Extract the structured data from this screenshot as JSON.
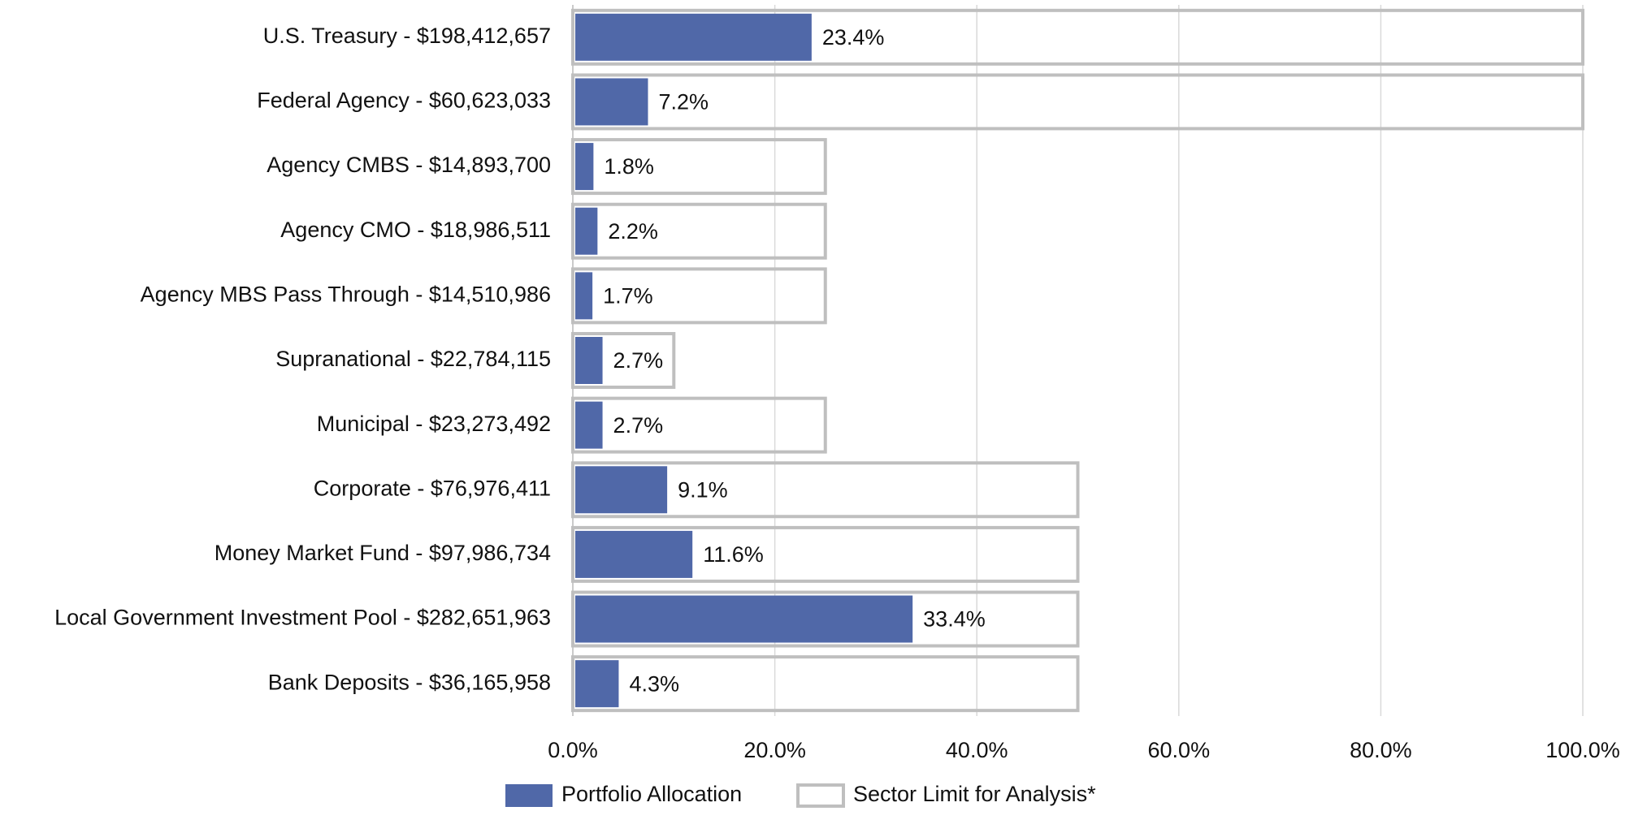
{
  "chart_data": {
    "type": "bar",
    "orientation": "horizontal",
    "categories": [
      "U.S. Treasury - $198,412,657",
      "Federal Agency - $60,623,033",
      "Agency CMBS - $14,893,700",
      "Agency CMO - $18,986,511",
      "Agency MBS Pass Through - $14,510,986",
      "Supranational - $22,784,115",
      "Municipal - $23,273,492",
      "Corporate - $76,976,411",
      "Money Market Fund - $97,986,734",
      "Local Government Investment Pool - $282,651,963",
      "Bank Deposits - $36,165,958"
    ],
    "series": [
      {
        "name": "Portfolio Allocation",
        "color": "#5068a8",
        "values": [
          23.4,
          7.2,
          1.8,
          2.2,
          1.7,
          2.7,
          2.7,
          9.1,
          11.6,
          33.4,
          4.3
        ],
        "value_labels": [
          "23.4%",
          "7.2%",
          "1.8%",
          "2.2%",
          "1.7%",
          "2.7%",
          "2.7%",
          "9.1%",
          "11.6%",
          "33.4%",
          "4.3%"
        ]
      },
      {
        "name": "Sector Limit for Analysis*",
        "color": "#bfbfbf",
        "values": [
          100,
          100,
          25,
          25,
          25,
          10,
          25,
          50,
          50,
          50,
          50
        ]
      }
    ],
    "xlim": [
      0,
      100
    ],
    "xticks": [
      {
        "value": 0,
        "label": "0.0%"
      },
      {
        "value": 20,
        "label": "20.0%"
      },
      {
        "value": 40,
        "label": "40.0%"
      },
      {
        "value": 60,
        "label": "60.0%"
      },
      {
        "value": 80,
        "label": "80.0%"
      },
      {
        "value": 100,
        "label": "100.0%"
      }
    ],
    "grid": true,
    "legend": "bottom"
  }
}
